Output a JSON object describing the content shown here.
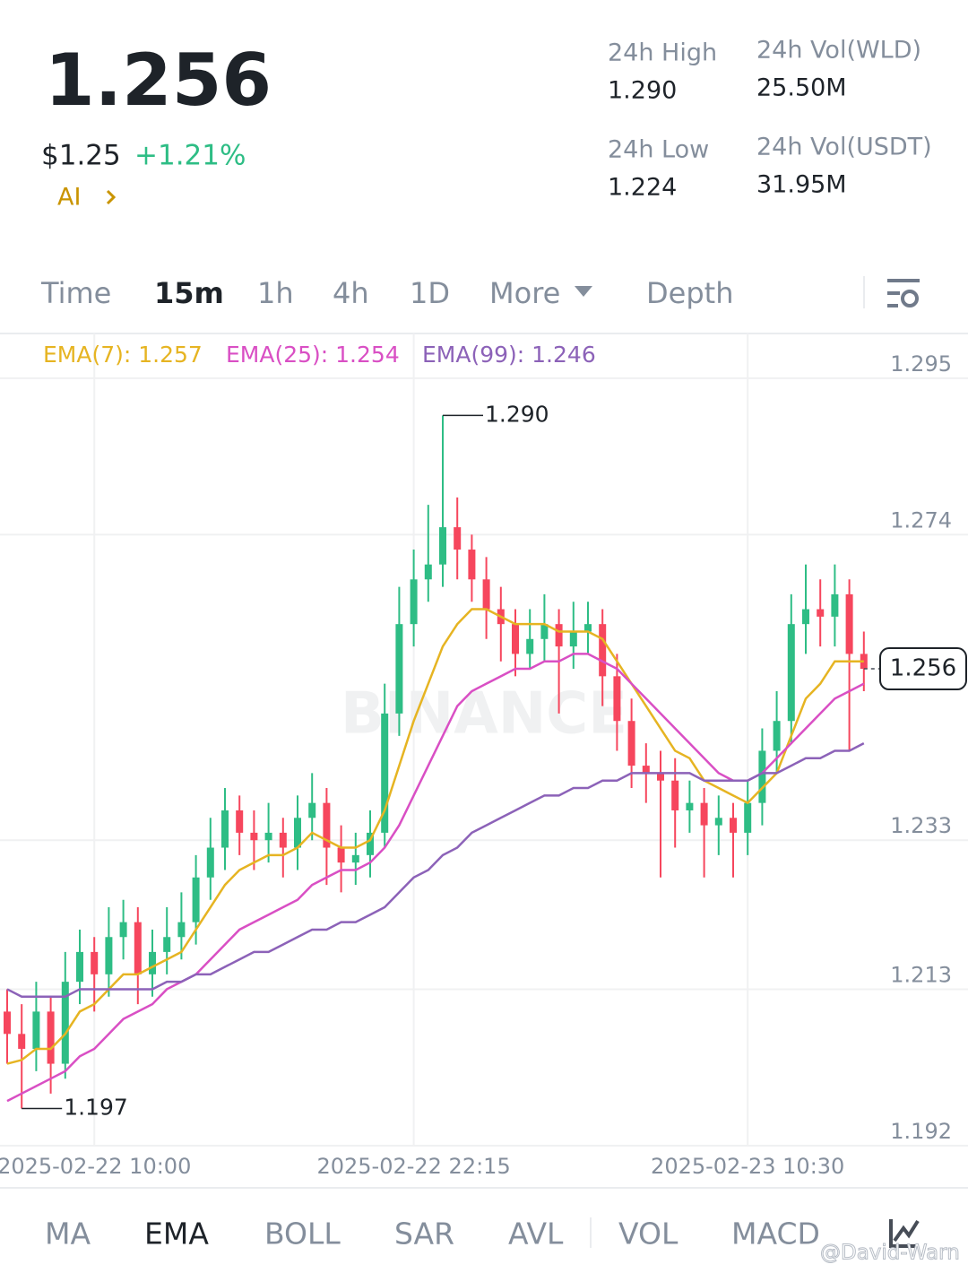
{
  "header": {
    "price": "1.256",
    "usd_price": "$1.25",
    "change": "+1.21%",
    "ai": "AI",
    "stats": [
      {
        "label": "24h High",
        "value": "1.290"
      },
      {
        "label": "24h Vol(WLD)",
        "value": "25.50M"
      },
      {
        "label": "24h Low",
        "value": "1.224"
      },
      {
        "label": "24h Vol(USDT)",
        "value": "31.95M"
      }
    ]
  },
  "timeframes": [
    "Time",
    "15m",
    "1h",
    "4h",
    "1D",
    "More",
    "Depth"
  ],
  "indicators": [
    "MA",
    "EMA",
    "BOLL",
    "SAR",
    "AVL",
    "VOL",
    "MACD"
  ],
  "watermark": "@David-Warn",
  "chart_data": {
    "type": "candlestick",
    "brand": "BINANCE",
    "categories": [
      null,
      null,
      null,
      null,
      null,
      null,
      "2025-02-22 10:00",
      null,
      null,
      null,
      null,
      null,
      null,
      null,
      null,
      null,
      null,
      null,
      null,
      null,
      null,
      null,
      null,
      null,
      null,
      null,
      null,
      null,
      "2025-02-22 22:15",
      null,
      null,
      null,
      null,
      null,
      null,
      null,
      null,
      null,
      null,
      null,
      null,
      null,
      null,
      null,
      null,
      null,
      null,
      null,
      null,
      null,
      null,
      "2025-02-23 10:30",
      null,
      null,
      null,
      null,
      null,
      null,
      null,
      null
    ],
    "open": [
      1.21,
      1.207,
      1.205,
      1.21,
      1.203,
      1.214,
      1.218,
      1.215,
      1.22,
      1.222,
      1.215,
      1.218,
      1.22,
      1.222,
      1.228,
      1.232,
      1.237,
      1.234,
      1.233,
      1.234,
      1.232,
      1.236,
      1.238,
      1.232,
      1.23,
      1.231,
      1.234,
      1.25,
      1.262,
      1.268,
      1.27,
      1.275,
      1.272,
      1.268,
      1.264,
      1.262,
      1.258,
      1.26,
      1.262,
      1.259,
      1.261,
      1.262,
      1.255,
      1.249,
      1.243,
      1.242,
      1.241,
      1.237,
      1.238,
      1.235,
      1.236,
      1.234,
      1.238,
      1.245,
      1.249,
      1.262,
      1.264,
      1.263,
      1.266,
      1.258
    ],
    "high": [
      1.213,
      1.211,
      1.214,
      1.212,
      1.218,
      1.221,
      1.22,
      1.224,
      1.225,
      1.224,
      1.221,
      1.224,
      1.226,
      1.231,
      1.236,
      1.24,
      1.239,
      1.237,
      1.238,
      1.236,
      1.239,
      1.242,
      1.24,
      1.235,
      1.234,
      1.237,
      1.254,
      1.267,
      1.272,
      1.278,
      1.29,
      1.279,
      1.274,
      1.271,
      1.267,
      1.264,
      1.264,
      1.266,
      1.264,
      1.265,
      1.265,
      1.264,
      1.258,
      1.252,
      1.246,
      1.245,
      1.244,
      1.241,
      1.24,
      1.239,
      1.238,
      1.241,
      1.248,
      1.253,
      1.266,
      1.27,
      1.268,
      1.27,
      1.268,
      1.261
    ],
    "low": [
      1.203,
      1.197,
      1.202,
      1.199,
      1.201,
      1.211,
      1.21,
      1.212,
      1.217,
      1.211,
      1.212,
      1.215,
      1.217,
      1.219,
      1.225,
      1.229,
      1.231,
      1.229,
      1.23,
      1.228,
      1.229,
      1.233,
      1.227,
      1.226,
      1.227,
      1.228,
      1.232,
      1.247,
      1.259,
      1.265,
      1.267,
      1.268,
      1.265,
      1.26,
      1.257,
      1.255,
      1.256,
      1.257,
      1.25,
      1.256,
      1.258,
      1.251,
      1.245,
      1.24,
      1.238,
      1.228,
      1.232,
      1.234,
      1.228,
      1.231,
      1.228,
      1.231,
      1.235,
      1.242,
      1.246,
      1.258,
      1.259,
      1.259,
      1.245,
      1.253
    ],
    "close": [
      1.207,
      1.205,
      1.21,
      1.203,
      1.214,
      1.218,
      1.215,
      1.22,
      1.222,
      1.215,
      1.218,
      1.22,
      1.222,
      1.228,
      1.232,
      1.237,
      1.234,
      1.233,
      1.234,
      1.232,
      1.236,
      1.238,
      1.232,
      1.23,
      1.231,
      1.234,
      1.25,
      1.262,
      1.268,
      1.27,
      1.275,
      1.272,
      1.268,
      1.264,
      1.262,
      1.258,
      1.26,
      1.262,
      1.259,
      1.261,
      1.262,
      1.255,
      1.249,
      1.243,
      1.242,
      1.241,
      1.237,
      1.238,
      1.235,
      1.236,
      1.234,
      1.238,
      1.245,
      1.249,
      1.262,
      1.264,
      1.263,
      1.266,
      1.258,
      1.256
    ],
    "up_color": "#2ebd85",
    "down_color": "#f6465d",
    "series": [
      {
        "name": "EMA(7): 1.257",
        "color": "#e6b422",
        "values": [
          1.203,
          1.2035,
          1.205,
          1.205,
          1.207,
          1.21,
          1.211,
          1.213,
          1.215,
          1.215,
          1.216,
          1.217,
          1.218,
          1.221,
          1.224,
          1.227,
          1.229,
          1.23,
          1.231,
          1.231,
          1.232,
          1.234,
          1.233,
          1.232,
          1.232,
          1.233,
          1.237,
          1.243,
          1.249,
          1.254,
          1.259,
          1.262,
          1.264,
          1.264,
          1.263,
          1.262,
          1.262,
          1.262,
          1.261,
          1.261,
          1.261,
          1.26,
          1.257,
          1.254,
          1.251,
          1.248,
          1.245,
          1.244,
          1.241,
          1.24,
          1.239,
          1.238,
          1.24,
          1.242,
          1.247,
          1.252,
          1.254,
          1.257,
          1.257,
          1.257
        ]
      },
      {
        "name": "EMA(25): 1.254",
        "color": "#d94fc4",
        "values": [
          1.198,
          1.199,
          1.2,
          1.201,
          1.202,
          1.204,
          1.205,
          1.207,
          1.209,
          1.21,
          1.211,
          1.213,
          1.214,
          1.215,
          1.217,
          1.219,
          1.221,
          1.222,
          1.223,
          1.224,
          1.225,
          1.227,
          1.228,
          1.229,
          1.229,
          1.23,
          1.232,
          1.235,
          1.239,
          1.243,
          1.247,
          1.251,
          1.253,
          1.254,
          1.255,
          1.256,
          1.256,
          1.257,
          1.257,
          1.258,
          1.258,
          1.257,
          1.256,
          1.254,
          1.252,
          1.25,
          1.248,
          1.246,
          1.244,
          1.242,
          1.241,
          1.241,
          1.242,
          1.244,
          1.246,
          1.248,
          1.25,
          1.252,
          1.253,
          1.254
        ]
      },
      {
        "name": "EMA(99): 1.246",
        "color": "#8c62b8",
        "values": [
          1.213,
          1.212,
          1.212,
          1.212,
          1.212,
          1.213,
          1.213,
          1.213,
          1.213,
          1.213,
          1.213,
          1.214,
          1.214,
          1.215,
          1.215,
          1.216,
          1.217,
          1.218,
          1.218,
          1.219,
          1.22,
          1.221,
          1.221,
          1.222,
          1.222,
          1.223,
          1.224,
          1.226,
          1.228,
          1.229,
          1.231,
          1.232,
          1.234,
          1.235,
          1.236,
          1.237,
          1.238,
          1.239,
          1.239,
          1.24,
          1.24,
          1.241,
          1.241,
          1.242,
          1.242,
          1.242,
          1.242,
          1.242,
          1.241,
          1.241,
          1.241,
          1.241,
          1.242,
          1.242,
          1.243,
          1.244,
          1.244,
          1.245,
          1.245,
          1.246
        ]
      }
    ],
    "annotations": [
      {
        "value": 1.29,
        "label": "1.290"
      },
      {
        "value": 1.197
      }
    ],
    "last_price": 1.256,
    "ylim": [
      1.192,
      1.301
    ],
    "yticks": [
      1.295,
      1.274,
      1.233,
      1.213,
      1.192
    ],
    "grid": true
  }
}
